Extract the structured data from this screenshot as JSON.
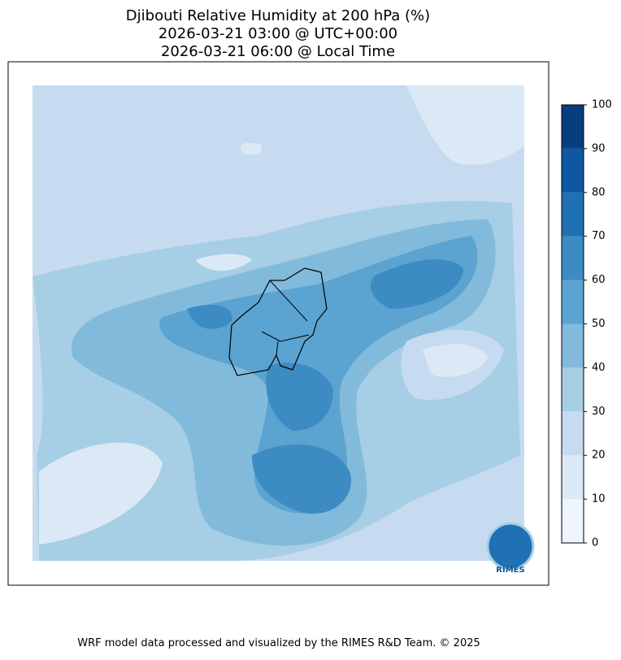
{
  "title": [
    "Djibouti Relative Humidity at 200 hPa (%)",
    "2026-03-21 03:00 @ UTC+00:00",
    "2026-03-21 06:00 @ Local Time"
  ],
  "colorbar": {
    "levels": [
      0,
      10,
      20,
      30,
      40,
      50,
      60,
      70,
      80,
      90,
      100
    ],
    "colors": [
      "#eef5fc",
      "#dbe9f6",
      "#c6dbef",
      "#a6cee4",
      "#82badb",
      "#5ba3d0",
      "#3c8bc3",
      "#2070b4",
      "#0d58a1",
      "#083d7f"
    ],
    "ticks": [
      0,
      10,
      20,
      30,
      40,
      50,
      60,
      70,
      80,
      90,
      100
    ]
  },
  "logo": "RIMES",
  "footer": "WRF model data processed and visualized by the RIMES R&D Team. © 2025"
}
